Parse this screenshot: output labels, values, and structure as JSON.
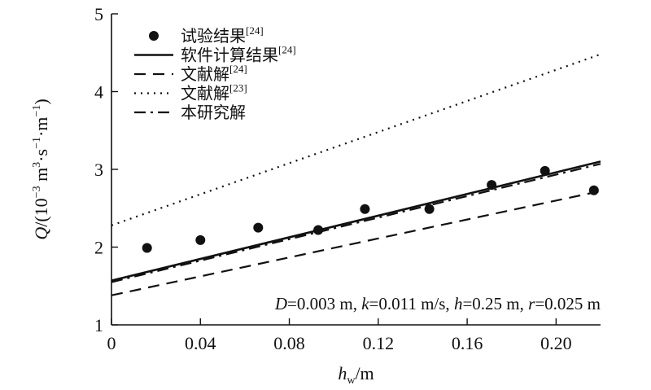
{
  "chart_data": {
    "type": "line",
    "xlim": [
      0,
      0.22
    ],
    "ylim": [
      1,
      5
    ],
    "x_ticks": [
      {
        "value": 0,
        "label": "0"
      },
      {
        "value": 0.04,
        "label": "0.04"
      },
      {
        "value": 0.08,
        "label": "0.08"
      },
      {
        "value": 0.12,
        "label": "0.12"
      },
      {
        "value": 0.16,
        "label": "0.16"
      },
      {
        "value": 0.2,
        "label": "0.20"
      }
    ],
    "y_ticks": [
      {
        "value": 1,
        "label": "1"
      },
      {
        "value": 2,
        "label": "2"
      },
      {
        "value": 3,
        "label": "3"
      },
      {
        "value": 4,
        "label": "4"
      },
      {
        "value": 5,
        "label": "5"
      }
    ],
    "xlabel": {
      "main": "h",
      "sub": "w",
      "rest": "/m"
    },
    "ylabel": {
      "var": "Q",
      "text": "/(10",
      "exp1": "−3",
      "text2": " m",
      "exp2": "3",
      "text3": "·s",
      "exp3": "−1",
      "text4": "·m",
      "exp4": "−1",
      "text5": ")"
    },
    "grid": false,
    "legend_position": "top-left",
    "annotation": "D=0.003 m, k=0.011 m/s, h=0.25 m, r=0.025 m",
    "series": [
      {
        "name": "试验结果",
        "ref": "[24]",
        "style": "markers",
        "color": "#111111",
        "x": [
          0.016,
          0.04,
          0.066,
          0.093,
          0.114,
          0.143,
          0.171,
          0.195,
          0.217
        ],
        "y": [
          1.99,
          2.09,
          2.25,
          2.22,
          2.49,
          2.49,
          2.8,
          2.98,
          2.73
        ]
      },
      {
        "name": "软件计算结果",
        "ref": "[24]",
        "style": "solid",
        "color": "#111111",
        "x": [
          0,
          0.22
        ],
        "y": [
          1.57,
          3.1
        ]
      },
      {
        "name": "文献解",
        "ref": "[24]",
        "style": "dashed",
        "color": "#111111",
        "x": [
          0,
          0.22
        ],
        "y": [
          1.38,
          2.72
        ]
      },
      {
        "name": "文献解",
        "ref": "[23]",
        "style": "dotted",
        "color": "#111111",
        "x": [
          0,
          0.22
        ],
        "y": [
          2.28,
          4.48
        ]
      },
      {
        "name": "本研究解",
        "ref": "",
        "style": "dashdot",
        "color": "#111111",
        "x": [
          0,
          0.22
        ],
        "y": [
          1.55,
          3.07
        ]
      }
    ]
  }
}
